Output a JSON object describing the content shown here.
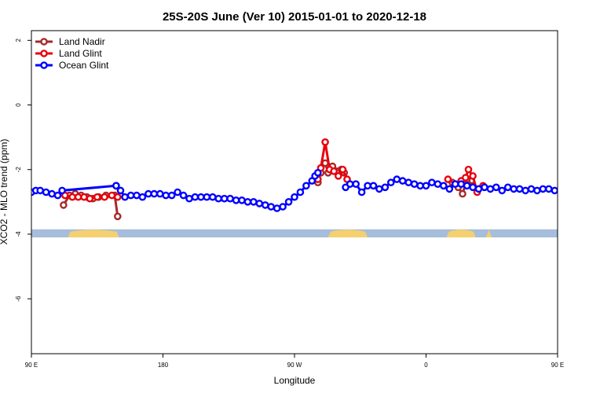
{
  "chart_data": {
    "type": "line",
    "title": "25S-20S June (Ver 10)   2015-01-01 to 2020-12-18",
    "xlabel": "Longitude",
    "ylabel": "XCO2 - MLO trend (ppm)",
    "xlim": [
      90,
      450
    ],
    "ylim": [
      -7.7,
      2.3
    ],
    "x_ticks": [
      {
        "value": 90,
        "label": "90 E"
      },
      {
        "value": 180,
        "label": "180"
      },
      {
        "value": 270,
        "label": "90 W"
      },
      {
        "value": 360,
        "label": "0"
      },
      {
        "value": 450,
        "label": "90 E"
      },
      {
        "value": 540,
        "label": "180"
      }
    ],
    "y_ticks": [
      {
        "value": 2,
        "label": "2"
      },
      {
        "value": 0,
        "label": "0"
      },
      {
        "value": -2,
        "label": "-2"
      },
      {
        "value": -4,
        "label": "-4"
      },
      {
        "value": -6,
        "label": "-6"
      }
    ],
    "legend_position": "top-left",
    "land_band": {
      "y_top": -3.85,
      "y_bottom": -4.1,
      "ocean_color": "#a6bddb",
      "land_color": "#f5d06f",
      "land_ranges": [
        [
          115,
          150
        ],
        [
          293,
          320
        ],
        [
          374,
          394
        ],
        [
          401,
          405
        ],
        [
          494,
          537
        ]
      ]
    },
    "series": [
      {
        "name": "Land Nadir",
        "color": "#a52a2a",
        "segments": [
          {
            "x": [
              112,
              116,
              120,
              124,
              128,
              132,
              136,
              141,
              147,
              149
            ],
            "y": [
              -3.1,
              -2.8,
              -2.75,
              -2.8,
              -2.85,
              -2.9,
              -2.85,
              -2.8,
              -2.8,
              -3.45
            ]
          },
          {
            "x": [
              286,
              288,
              291,
              293,
              296,
              299,
              302,
              304
            ],
            "y": [
              -2.4,
              -2.1,
              -1.8,
              -2.1,
              -1.9,
              -2.05,
              -2.0,
              -2.1
            ]
          },
          {
            "x": [
              378,
              382,
              385,
              388,
              392,
              396
            ],
            "y": [
              -2.4,
              -2.55,
              -2.75,
              -2.3,
              -2.5,
              -2.6
            ]
          },
          {
            "x": [
              492,
              496,
              500,
              504,
              508,
              512,
              516,
              520
            ],
            "y": [
              -3.1,
              -2.85,
              -2.7,
              -2.75,
              -2.7,
              -2.85,
              -2.8,
              -3.45
            ]
          }
        ]
      },
      {
        "name": "Land Glint",
        "color": "#e8000b",
        "segments": [
          {
            "x": [
              113,
              118,
              122,
              126,
              130,
              135,
              140,
              145,
              149
            ],
            "y": [
              -2.8,
              -2.85,
              -2.85,
              -2.85,
              -2.9,
              -2.85,
              -2.85,
              -2.8,
              -2.85
            ]
          },
          {
            "x": [
              286,
              288,
              291,
              294,
              297,
              300,
              303,
              306
            ],
            "y": [
              -2.3,
              -1.95,
              -1.15,
              -2.0,
              -2.05,
              -2.2,
              -2.0,
              -2.3
            ]
          },
          {
            "x": [
              375,
              380,
              384,
              387,
              389,
              392,
              395,
              399
            ],
            "y": [
              -2.3,
              -2.45,
              -2.35,
              -2.25,
              -2.0,
              -2.2,
              -2.7,
              -2.5
            ]
          },
          {
            "x": [
              495,
              500,
              505,
              510,
              514,
              518,
              522
            ],
            "y": [
              -2.8,
              -2.75,
              -2.8,
              -2.8,
              -2.75,
              -2.85,
              -2.8
            ]
          }
        ]
      },
      {
        "name": "Ocean Glint",
        "color": "#0000ff",
        "segments": [
          {
            "x": [
              90,
              93,
              96,
              100,
              104,
              108,
              111,
              148
            ],
            "y": [
              -2.7,
              -2.65,
              -2.65,
              -2.7,
              -2.75,
              -2.8,
              -2.65,
              -2.5
            ]
          },
          {
            "x": [
              148,
              151,
              154,
              158,
              162,
              166,
              170,
              174,
              178,
              182,
              186,
              190,
              194,
              198,
              202,
              206,
              210,
              214,
              218,
              222,
              226,
              230,
              234,
              238,
              242,
              246,
              250,
              254,
              258,
              262,
              266,
              270,
              274,
              278,
              282,
              284,
              286
            ],
            "y": [
              -2.5,
              -2.65,
              -2.85,
              -2.8,
              -2.8,
              -2.85,
              -2.75,
              -2.75,
              -2.75,
              -2.8,
              -2.8,
              -2.7,
              -2.8,
              -2.9,
              -2.85,
              -2.85,
              -2.85,
              -2.85,
              -2.9,
              -2.9,
              -2.9,
              -2.95,
              -2.95,
              -3.0,
              -3.0,
              -3.05,
              -3.1,
              -3.15,
              -3.2,
              -3.15,
              -3.0,
              -2.85,
              -2.7,
              -2.5,
              -2.35,
              -2.2,
              -2.1
            ]
          },
          {
            "x": [
              305,
              308,
              312,
              316,
              320,
              324,
              328,
              332,
              336,
              340,
              344,
              348,
              352,
              356,
              360,
              364,
              368,
              372,
              376,
              380,
              384,
              388
            ],
            "y": [
              -2.55,
              -2.45,
              -2.45,
              -2.7,
              -2.5,
              -2.5,
              -2.6,
              -2.55,
              -2.4,
              -2.3,
              -2.35,
              -2.4,
              -2.45,
              -2.5,
              -2.5,
              -2.4,
              -2.45,
              -2.5,
              -2.6,
              -2.45,
              -2.45,
              -2.5
            ]
          },
          {
            "x": [
              392,
              396,
              400,
              404,
              408,
              412,
              416,
              420,
              424,
              428,
              432,
              436,
              440,
              444,
              448,
              452,
              456,
              460,
              464,
              468,
              472,
              476,
              480,
              484,
              488,
              492,
              496
            ],
            "y": [
              -2.55,
              -2.6,
              -2.55,
              -2.6,
              -2.55,
              -2.65,
              -2.55,
              -2.6,
              -2.6,
              -2.65,
              -2.6,
              -2.65,
              -2.6,
              -2.6,
              -2.65,
              -2.6,
              -2.6,
              -2.65,
              -2.6,
              -2.65,
              -2.6,
              -2.65,
              -2.6,
              -2.75,
              -2.7,
              -2.65,
              -2.7
            ]
          },
          {
            "x": [
              518,
              522,
              526,
              530,
              534,
              538,
              542
            ],
            "y": [
              -2.5,
              -2.65,
              -2.85,
              -2.8,
              -2.8,
              -2.85,
              -2.8
            ]
          }
        ]
      }
    ]
  }
}
